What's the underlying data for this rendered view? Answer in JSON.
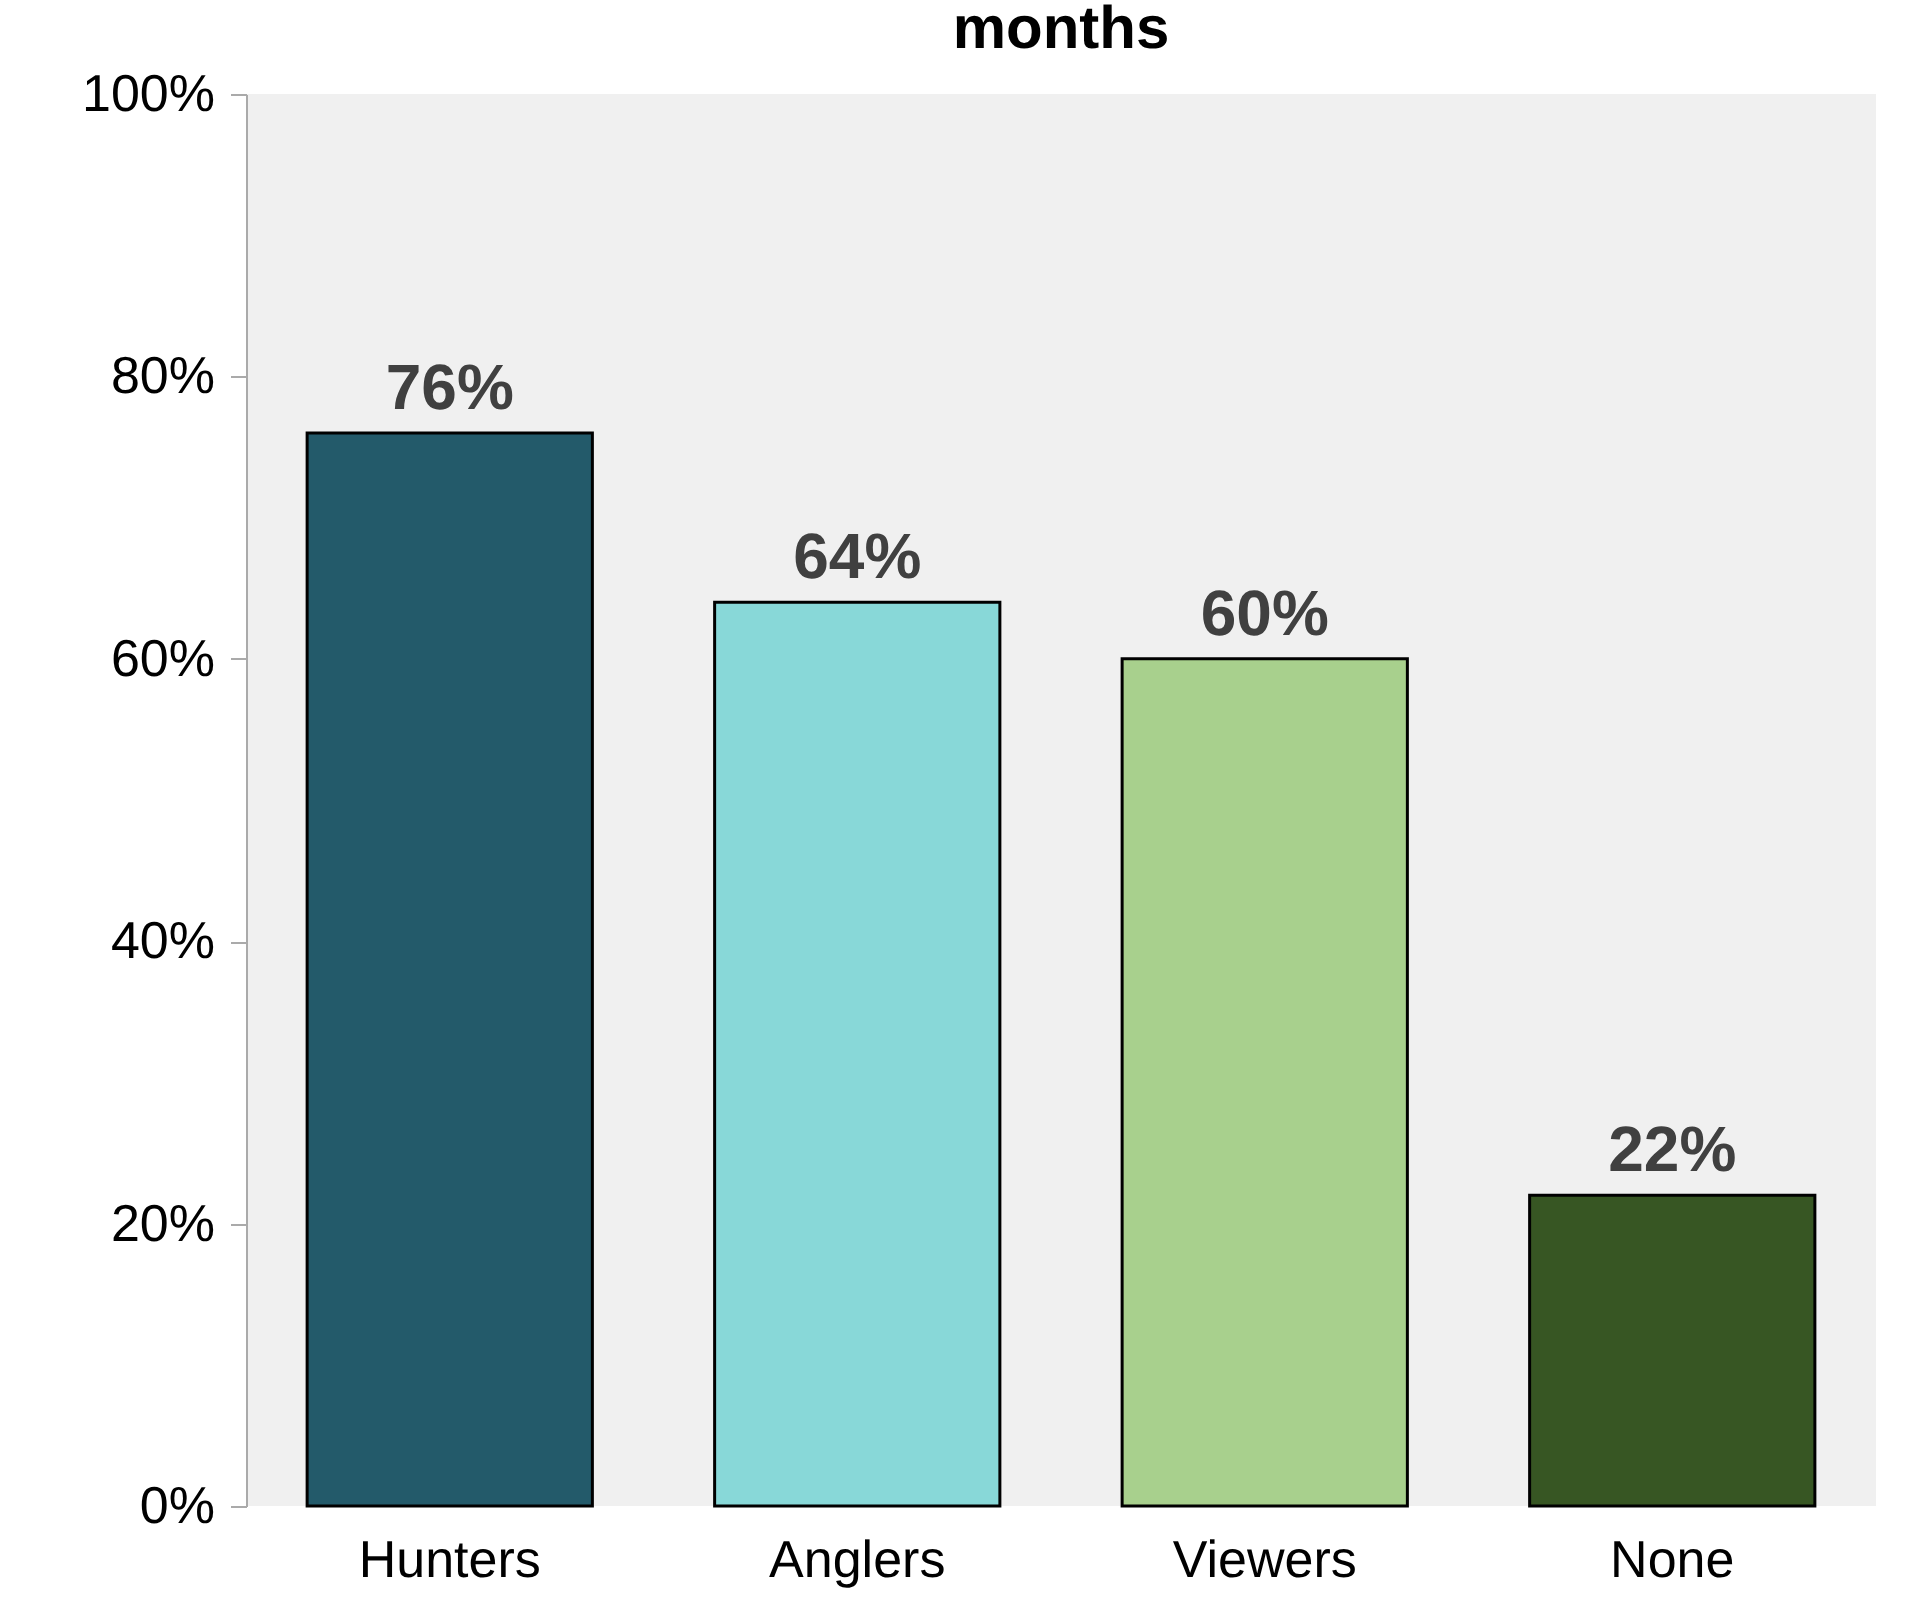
{
  "chart_data": {
    "type": "bar",
    "title": "months",
    "categories": [
      "Hunters",
      "Anglers",
      "Viewers",
      "None"
    ],
    "values": [
      76,
      64,
      60,
      22
    ],
    "colors": [
      "#235a6a",
      "#88d8d8",
      "#a8d08d",
      "#375623"
    ],
    "ylim": [
      0,
      100
    ],
    "yticks": [
      {
        "value": 0,
        "label": "0%"
      },
      {
        "value": 20,
        "label": "20%"
      },
      {
        "value": 40,
        "label": "40%"
      },
      {
        "value": 60,
        "label": "60%"
      },
      {
        "value": 80,
        "label": "80%"
      },
      {
        "value": 100,
        "label": "100%"
      }
    ],
    "value_labels": [
      "76%",
      "64%",
      "60%",
      "22%"
    ]
  }
}
